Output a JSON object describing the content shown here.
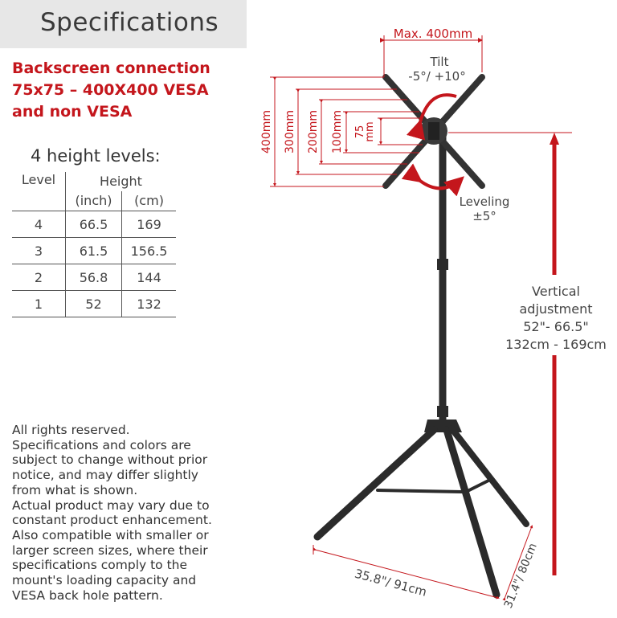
{
  "header": {
    "title": "Specifications"
  },
  "backscreen": {
    "lines": [
      "Backscreen connection",
      "75x75 – 400X400 VESA",
      "and non VESA"
    ]
  },
  "levels": {
    "title": "4 height levels:",
    "col_level": "Level",
    "col_height": "Height",
    "col_inch": "(inch)",
    "col_cm": "(cm)",
    "rows": [
      {
        "level": "4",
        "inch": "66.5",
        "cm": "169"
      },
      {
        "level": "3",
        "inch": "61.5",
        "cm": "156.5"
      },
      {
        "level": "2",
        "inch": "56.8",
        "cm": "144"
      },
      {
        "level": "1",
        "inch": "52",
        "cm": "132"
      }
    ]
  },
  "diagram": {
    "max_width": "Max. 400mm",
    "tilt_label": "Tilt",
    "tilt_value": "-5°/ +10°",
    "leveling_label": "Leveling",
    "leveling_value": "±5°",
    "vesa_400": "400mm",
    "vesa_300": "300mm",
    "vesa_200": "200mm",
    "vesa_100": "100mm",
    "vesa_75_a": "75",
    "vesa_75_b": "mm",
    "vertical": [
      "Vertical",
      "adjustment",
      "52\"- 66.5\"",
      "132cm - 169cm"
    ],
    "base_width": "35.8\"/ 91cm",
    "base_depth": "31.4\"/ 80cm"
  },
  "disclaimer": {
    "lines": [
      "All rights reserved.",
      "Specifications and colors are",
      "subject to change without prior",
      "notice, and may differ slightly",
      "from what is shown.",
      "Actual product may vary due to",
      "constant product enhancement.",
      "Also compatible with smaller or",
      "larger screen sizes, where their",
      "specifications comply to the",
      "mount's loading capacity and",
      "VESA back hole pattern."
    ]
  },
  "colors": {
    "accent_red": "#c4161c",
    "text": "#3a3a3a",
    "title_bg": "#e7e7e7",
    "product": "#2b2b2b"
  }
}
